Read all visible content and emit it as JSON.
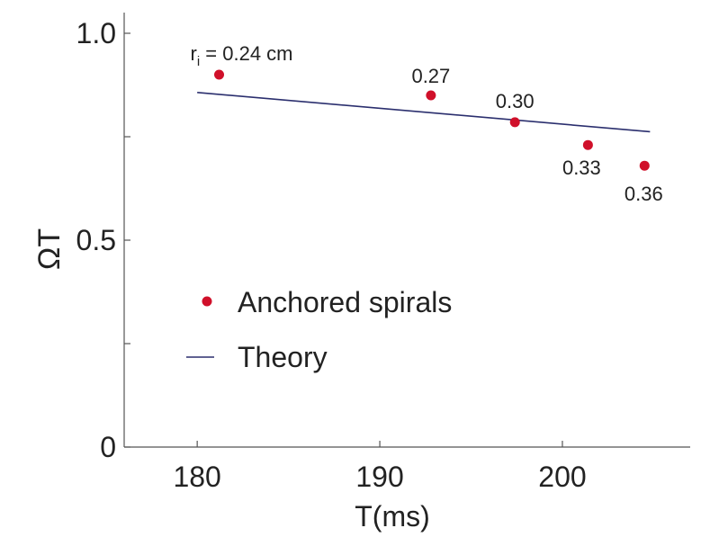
{
  "chart_data": {
    "type": "scatter",
    "xlabel": "T(ms)",
    "ylabel": "ΩT",
    "xlim": [
      176,
      207
    ],
    "ylim": [
      0,
      1.05
    ],
    "x_ticks": [
      180,
      190,
      200
    ],
    "x_tick_labels": [
      "180",
      "190",
      "200"
    ],
    "y_ticks": [
      0,
      0.25,
      0.5,
      0.75,
      1.0
    ],
    "y_tick_labels": [
      "0",
      "",
      "0.5",
      "",
      "1.0"
    ],
    "series": [
      {
        "name": "Anchored spirals",
        "kind": "scatter",
        "color": "#d0102a",
        "points": [
          {
            "x": 181.2,
            "y": 0.9,
            "label_prefix": "r",
            "label_sub": "i",
            "label": " = 0.24 cm"
          },
          {
            "x": 192.8,
            "y": 0.85,
            "label": "0.27"
          },
          {
            "x": 197.4,
            "y": 0.785,
            "label": "0.30"
          },
          {
            "x": 201.4,
            "y": 0.73,
            "label": "0.33"
          },
          {
            "x": 204.5,
            "y": 0.68,
            "label": "0.36"
          }
        ]
      },
      {
        "name": "Theory",
        "kind": "line",
        "color": "#2b2f6e",
        "x": [
          180,
          204.8
        ],
        "y": [
          0.857,
          0.762
        ]
      }
    ],
    "legend": {
      "position": "center-left",
      "entries": [
        "Anchored spirals",
        "Theory"
      ]
    }
  }
}
